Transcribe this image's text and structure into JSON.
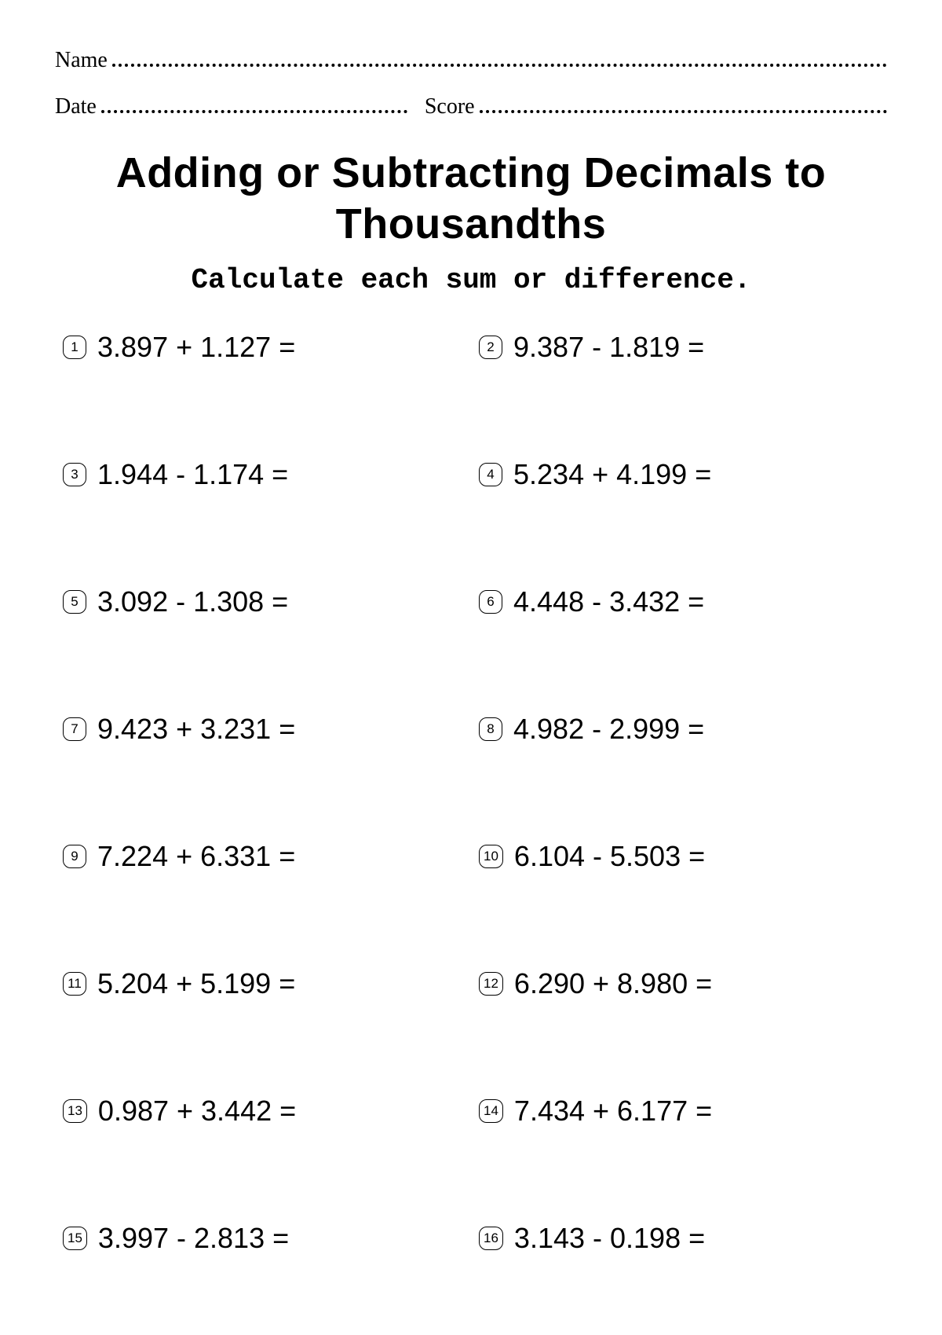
{
  "header": {
    "name_label": "Name",
    "date_label": "Date",
    "score_label": "Score"
  },
  "title": "Adding or Subtracting Decimals to Thousandths",
  "subtitle": "Calculate each sum or difference.",
  "problems": [
    {
      "n": "1",
      "expr": "3.897 + 1.127 ="
    },
    {
      "n": "2",
      "expr": "9.387 - 1.819 ="
    },
    {
      "n": "3",
      "expr": "1.944 - 1.174 ="
    },
    {
      "n": "4",
      "expr": "5.234 + 4.199 ="
    },
    {
      "n": "5",
      "expr": "3.092 - 1.308 ="
    },
    {
      "n": "6",
      "expr": "4.448 - 3.432 ="
    },
    {
      "n": "7",
      "expr": "9.423 + 3.231 ="
    },
    {
      "n": "8",
      "expr": "4.982 - 2.999 ="
    },
    {
      "n": "9",
      "expr": "7.224 + 6.331 ="
    },
    {
      "n": "10",
      "expr": "6.104 - 5.503 ="
    },
    {
      "n": "11",
      "expr": "5.204 + 5.199 ="
    },
    {
      "n": "12",
      "expr": "6.290 + 8.980 ="
    },
    {
      "n": "13",
      "expr": "0.987 + 3.442 ="
    },
    {
      "n": "14",
      "expr": "7.434 + 6.177 ="
    },
    {
      "n": "15",
      "expr": "3.997 - 2.813 ="
    },
    {
      "n": "16",
      "expr": "3.143 - 0.198 ="
    }
  ],
  "style": {
    "text_color": "#000000",
    "background_color": "#ffffff",
    "title_fontsize": 54,
    "subtitle_fontsize": 36,
    "problem_fontsize": 36,
    "badge_fontsize": 17,
    "columns": 2,
    "row_gap": 120
  }
}
